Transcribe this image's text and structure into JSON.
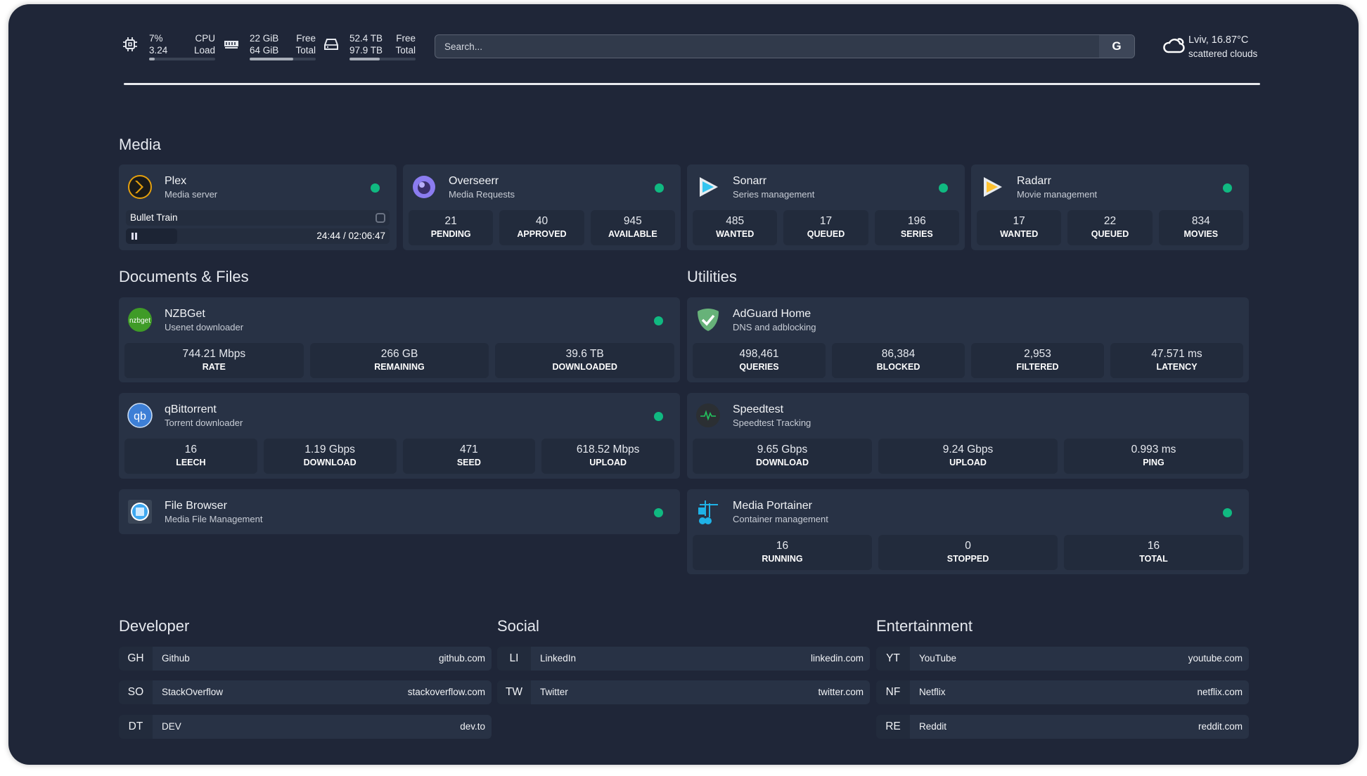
{
  "header": {
    "cpu": {
      "value1": "7%",
      "value2": "3.24",
      "label1": "CPU",
      "label2": "Load",
      "usage_percent": 7
    },
    "memory": {
      "value1": "22 GiB",
      "value2": "64 GiB",
      "label1": "Free",
      "label2": "Total",
      "usage_percent": 66
    },
    "disk": {
      "value1": "52.4 TB",
      "value2": "97.9 TB",
      "label1": "Free",
      "label2": "Total",
      "usage_percent": 46
    },
    "search": {
      "placeholder": "Search...",
      "engine_button": "G"
    },
    "weather": {
      "location_temp": "Lviv, 16.87°C",
      "condition": "scattered clouds",
      "icon": "cloud-sun-icon"
    }
  },
  "colors": {
    "background": "#1f2638",
    "card": "#283245",
    "stat_box": "#222b3c",
    "status_online": "#10b981"
  },
  "sections": {
    "media": "Media",
    "documents": "Documents & Files",
    "utilities": "Utilities",
    "developer": "Developer",
    "social": "Social",
    "entertainment": "Entertainment"
  },
  "media": [
    {
      "name": "Plex",
      "desc": "Media server",
      "icon": "plex-icon",
      "status": "online",
      "now_playing": {
        "title": "Bullet Train",
        "time": "24:44 / 02:06:47",
        "progress_percent": 19.5
      }
    },
    {
      "name": "Overseerr",
      "desc": "Media Requests",
      "icon": "overseerr-icon",
      "status": "online",
      "stats": [
        {
          "value": "21",
          "label": "PENDING"
        },
        {
          "value": "40",
          "label": "APPROVED"
        },
        {
          "value": "945",
          "label": "AVAILABLE"
        }
      ]
    },
    {
      "name": "Sonarr",
      "desc": "Series management",
      "icon": "sonarr-icon",
      "status": "online",
      "stats": [
        {
          "value": "485",
          "label": "WANTED"
        },
        {
          "value": "17",
          "label": "QUEUED"
        },
        {
          "value": "196",
          "label": "SERIES"
        }
      ]
    },
    {
      "name": "Radarr",
      "desc": "Movie management",
      "icon": "radarr-icon",
      "status": "online",
      "stats": [
        {
          "value": "17",
          "label": "WANTED"
        },
        {
          "value": "22",
          "label": "QUEUED"
        },
        {
          "value": "834",
          "label": "MOVIES"
        }
      ]
    }
  ],
  "documents": [
    {
      "name": "NZBGet",
      "desc": "Usenet downloader",
      "icon": "nzbget-icon",
      "status": "online",
      "stats": [
        {
          "value": "744.21 Mbps",
          "label": "RATE"
        },
        {
          "value": "266 GB",
          "label": "REMAINING"
        },
        {
          "value": "39.6 TB",
          "label": "DOWNLOADED"
        }
      ]
    },
    {
      "name": "qBittorrent",
      "desc": "Torrent downloader",
      "icon": "qbittorrent-icon",
      "status": "online",
      "stats": [
        {
          "value": "16",
          "label": "LEECH"
        },
        {
          "value": "1.19 Gbps",
          "label": "DOWNLOAD"
        },
        {
          "value": "471",
          "label": "SEED"
        },
        {
          "value": "618.52 Mbps",
          "label": "UPLOAD"
        }
      ]
    },
    {
      "name": "File Browser",
      "desc": "Media File Management",
      "icon": "filebrowser-icon",
      "status": "online"
    }
  ],
  "utilities": [
    {
      "name": "AdGuard Home",
      "desc": "DNS and adblocking",
      "icon": "adguard-icon",
      "stats": [
        {
          "value": "498,461",
          "label": "QUERIES"
        },
        {
          "value": "86,384",
          "label": "BLOCKED"
        },
        {
          "value": "2,953",
          "label": "FILTERED"
        },
        {
          "value": "47.571 ms",
          "label": "LATENCY"
        }
      ]
    },
    {
      "name": "Speedtest",
      "desc": "Speedtest Tracking",
      "icon": "speedtest-icon",
      "stats": [
        {
          "value": "9.65 Gbps",
          "label": "DOWNLOAD"
        },
        {
          "value": "9.24 Gbps",
          "label": "UPLOAD"
        },
        {
          "value": "0.993 ms",
          "label": "PING"
        }
      ]
    },
    {
      "name": "Media Portainer",
      "desc": "Container management",
      "icon": "portainer-icon",
      "status": "online",
      "stats": [
        {
          "value": "16",
          "label": "RUNNING"
        },
        {
          "value": "0",
          "label": "STOPPED"
        },
        {
          "value": "16",
          "label": "TOTAL"
        }
      ]
    }
  ],
  "bookmarks": {
    "developer": [
      {
        "abbr": "GH",
        "name": "Github",
        "url": "github.com"
      },
      {
        "abbr": "SO",
        "name": "StackOverflow",
        "url": "stackoverflow.com"
      },
      {
        "abbr": "DT",
        "name": "DEV",
        "url": "dev.to"
      }
    ],
    "social": [
      {
        "abbr": "LI",
        "name": "LinkedIn",
        "url": "linkedin.com"
      },
      {
        "abbr": "TW",
        "name": "Twitter",
        "url": "twitter.com"
      }
    ],
    "entertainment": [
      {
        "abbr": "YT",
        "name": "YouTube",
        "url": "youtube.com"
      },
      {
        "abbr": "NF",
        "name": "Netflix",
        "url": "netflix.com"
      },
      {
        "abbr": "RE",
        "name": "Reddit",
        "url": "reddit.com"
      }
    ]
  }
}
